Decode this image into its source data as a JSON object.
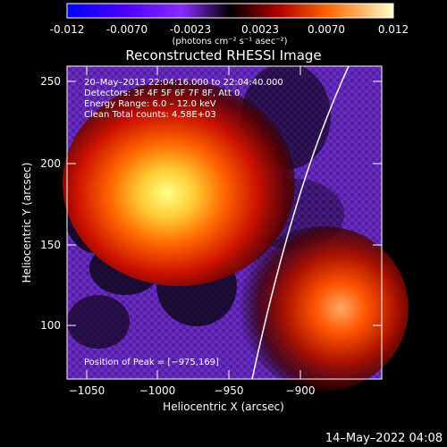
{
  "app": {
    "title": "Reconstructed RHESSI Image"
  },
  "colorbar": {
    "ticks": [
      "-0.012",
      "-0.0070",
      "-0.0023",
      "0.0023",
      "0.0070",
      "0.012"
    ],
    "unit_label": "(photons cm⁻² s⁻¹ asec⁻²)"
  },
  "axes": {
    "x_label": "Heliocentric X (arcsec)",
    "y_label": "Heliocentric Y (arcsec)",
    "x_ticks": [
      "−1050",
      "−1000",
      "−950",
      "−900"
    ],
    "y_ticks": [
      "250",
      "200",
      "150",
      "100"
    ]
  },
  "annotations": {
    "time_range": "20–May–2013 22:04:16.000 to 22:04:40.000",
    "detectors": "Detectors: 3F 4F 5F 6F 7F 8F, Att 0",
    "energy_range": "Energy Range: 6.0 – 12.0 keV",
    "clean_info": "Clean    Total counts: 4.58E+03",
    "peak_position": "Position of Peak = [−975,169]"
  },
  "footer": {
    "datetime": "14–May–2022 04:08"
  },
  "colors": {
    "background": "#000000",
    "colorbar_low": "#0000ff",
    "colorbar_mid_low": "#9933ff",
    "colorbar_mid": "#000000",
    "colorbar_mid_high": "#cc2200",
    "colorbar_high": "#ffffaa",
    "limb_line": "#ffffff",
    "axes_color": "#ffffff"
  }
}
